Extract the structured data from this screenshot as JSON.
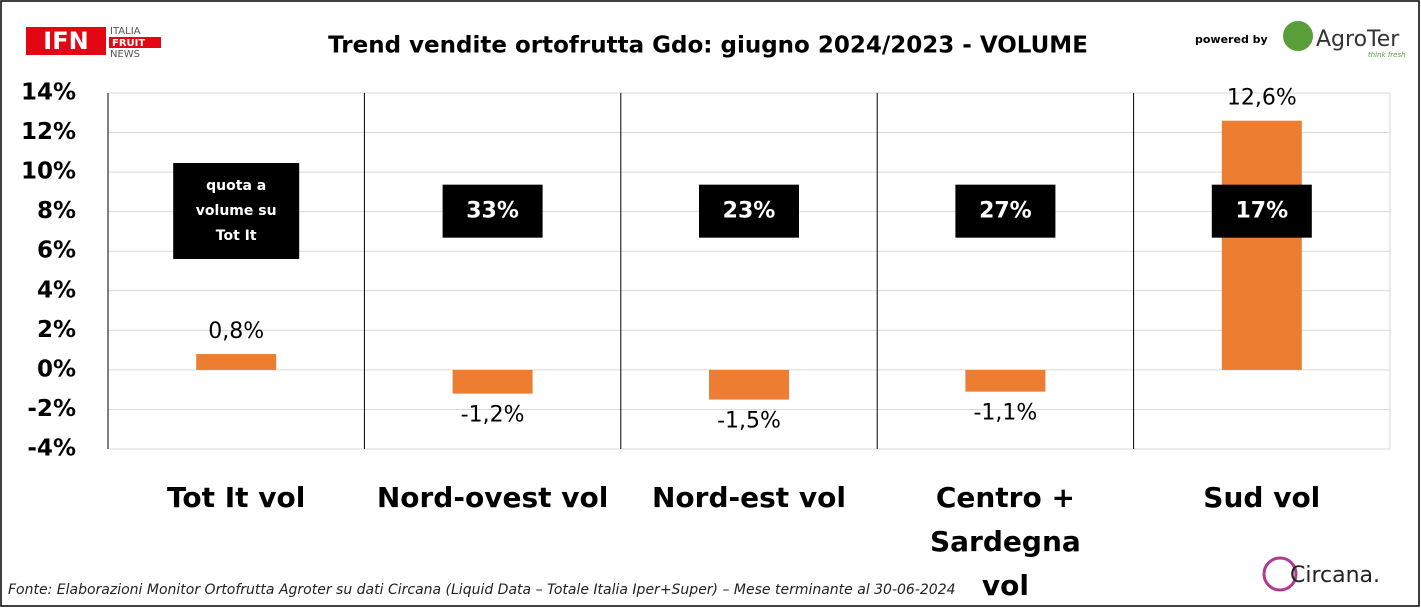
{
  "chart_data": {
    "type": "bar",
    "title": "Trend vendite ortofrutta Gdo: giugno 2024/2023 - VOLUME",
    "categories": [
      "Tot It  vol",
      "Nord-ovest vol",
      "Nord-est vol",
      "Centro + Sardegna vol",
      "Sud vol"
    ],
    "values": [
      0.8,
      -1.2,
      -1.5,
      -1.1,
      12.6
    ],
    "value_labels": [
      "0,8%",
      "-1,2%",
      "-1,5%",
      "-1,1%",
      "12,6%"
    ],
    "color": "#ed7d31",
    "share_note": "quota a volume su Tot It",
    "shares": [
      null,
      33,
      23,
      27,
      17
    ],
    "share_labels": [
      null,
      "33%",
      "23%",
      "27%",
      "17%"
    ],
    "ylim": [
      -4,
      14
    ],
    "yticks": [
      {
        "value": -4,
        "label": "-4%"
      },
      {
        "value": -2,
        "label": "-2%"
      },
      {
        "value": 0,
        "label": "0%"
      },
      {
        "value": 2,
        "label": "2%"
      },
      {
        "value": 4,
        "label": "4%"
      },
      {
        "value": 6,
        "label": "6%"
      },
      {
        "value": 8,
        "label": "8%"
      },
      {
        "value": 10,
        "label": "10%"
      },
      {
        "value": 12,
        "label": "12%"
      },
      {
        "value": 14,
        "label": "14%"
      }
    ],
    "grid": true
  },
  "header": {
    "logo": "IFN",
    "logo_text": [
      "ITALIA",
      "FRUIT",
      "NEWS"
    ],
    "powered_by": "powered by",
    "brand": "AgroTer",
    "tagline": "think fresh"
  },
  "footer": {
    "source": "Fonte: Elaborazioni Monitor Ortofrutta Agroter su dati Circana (Liquid Data – Totale Italia Iper+Super) – Mese terminante al 30-06-2024",
    "logo": "Circana."
  }
}
